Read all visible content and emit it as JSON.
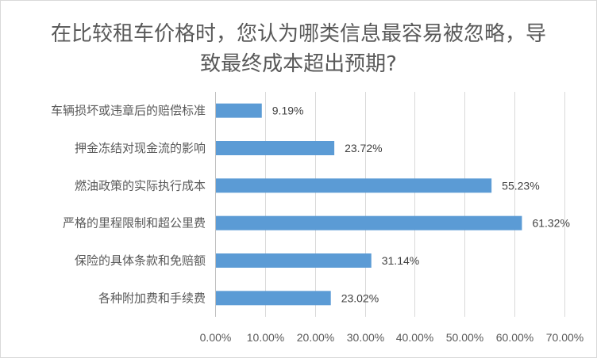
{
  "chart_data": {
    "type": "bar",
    "orientation": "horizontal",
    "title": "在比较租车价格时，您认为哪类信息最容易被忽略，导致最终成本超出预期?",
    "categories": [
      "车辆损坏或违章后的赔偿标准",
      "押金冻结对现金流的影响",
      "燃油政策的实际执行成本",
      "严格的里程限制和超公里费",
      "保险的具体条款和免赔额",
      "各种附加费和手续费"
    ],
    "values": [
      9.19,
      23.72,
      55.23,
      61.32,
      31.14,
      23.02
    ],
    "data_labels": [
      "9.19%",
      "23.72%",
      "55.23%",
      "61.32%",
      "31.14%",
      "23.02%"
    ],
    "xlim": [
      0,
      70
    ],
    "x_ticks": [
      "0.00%",
      "10.00%",
      "20.00%",
      "30.00%",
      "40.00%",
      "50.00%",
      "60.00%",
      "70.00%"
    ],
    "grid": "vertical",
    "legend": "none",
    "bar_color": "#5b9bd5",
    "grid_color": "#d9d9d9"
  }
}
